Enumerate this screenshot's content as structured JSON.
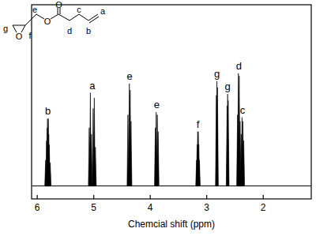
{
  "chart_data": {
    "type": "spectrum",
    "x_label": "Chemcial shift (ppm)",
    "xlim": [
      6.1,
      1.15
    ],
    "xticks": [
      6,
      5,
      4,
      3,
      2
    ],
    "ylim": [
      -10,
      140
    ],
    "tick_labels": "x",
    "color": "#000000",
    "multiplets": [
      {
        "label": "b",
        "peaks": [
          {
            "x": 5.852,
            "height": 20
          },
          {
            "x": 5.835,
            "height": 35
          },
          {
            "x": 5.826,
            "height": 45
          },
          {
            "x": 5.818,
            "height": 52
          },
          {
            "x": 5.804,
            "height": 52
          },
          {
            "x": 5.796,
            "height": 40
          },
          {
            "x": 5.787,
            "height": 32
          },
          {
            "x": 5.77,
            "height": 18
          }
        ]
      },
      {
        "label": "a",
        "peaks": [
          {
            "x": 5.08,
            "height": 45
          },
          {
            "x": 5.06,
            "height": 72
          },
          {
            "x": 5.04,
            "height": 40
          },
          {
            "x": 5.01,
            "height": 60
          },
          {
            "x": 4.99,
            "height": 68
          },
          {
            "x": 4.97,
            "height": 30
          }
        ]
      },
      {
        "label": "e",
        "peaks": [
          {
            "x": 4.395,
            "height": 55
          },
          {
            "x": 4.37,
            "height": 79
          },
          {
            "x": 4.355,
            "height": 74
          },
          {
            "x": 4.34,
            "height": 50
          }
        ]
      },
      {
        "label": "e",
        "peaks": [
          {
            "x": 3.91,
            "height": 45
          },
          {
            "x": 3.895,
            "height": 57
          },
          {
            "x": 3.875,
            "height": 55
          },
          {
            "x": 3.86,
            "height": 42
          }
        ]
      },
      {
        "label": "f",
        "peaks": [
          {
            "x": 3.18,
            "height": 20
          },
          {
            "x": 3.17,
            "height": 32
          },
          {
            "x": 3.16,
            "height": 42
          },
          {
            "x": 3.15,
            "height": 42
          },
          {
            "x": 3.14,
            "height": 32
          },
          {
            "x": 3.13,
            "height": 20
          }
        ]
      },
      {
        "label": "g",
        "peaks": [
          {
            "x": 2.83,
            "height": 70
          },
          {
            "x": 2.82,
            "height": 81
          },
          {
            "x": 2.81,
            "height": 76
          }
        ]
      },
      {
        "label": "g",
        "peaks": [
          {
            "x": 2.64,
            "height": 62
          },
          {
            "x": 2.63,
            "height": 71
          },
          {
            "x": 2.62,
            "height": 66
          }
        ]
      },
      {
        "label": "d",
        "peaks": [
          {
            "x": 2.455,
            "height": 55
          },
          {
            "x": 2.44,
            "height": 87
          },
          {
            "x": 2.425,
            "height": 85
          },
          {
            "x": 2.41,
            "height": 50
          }
        ]
      },
      {
        "label": "c",
        "peaks": [
          {
            "x": 2.39,
            "height": 40
          },
          {
            "x": 2.375,
            "height": 53
          },
          {
            "x": 2.36,
            "height": 50
          },
          {
            "x": 2.345,
            "height": 35
          }
        ]
      }
    ]
  },
  "structure": {
    "atoms": [
      "O",
      "O",
      "O"
    ],
    "site_labels": [
      "g",
      "e",
      "f",
      "d",
      "c",
      "b",
      "a"
    ]
  }
}
